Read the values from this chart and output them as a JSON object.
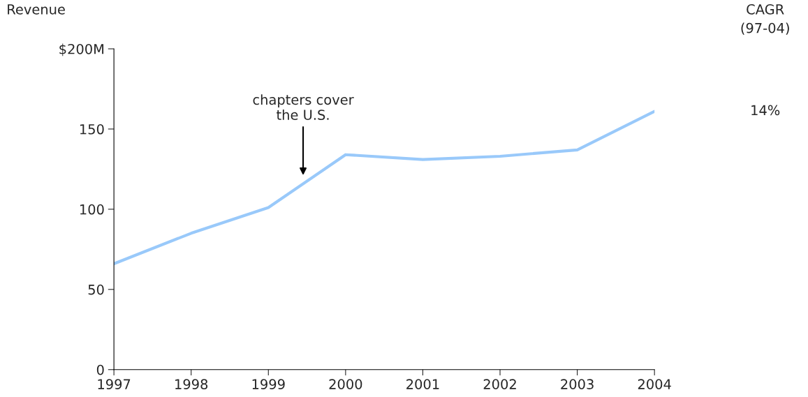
{
  "chart_data": {
    "type": "line",
    "ylabel": "Revenue",
    "x": [
      1997,
      1998,
      1999,
      2000,
      2001,
      2002,
      2003,
      2004
    ],
    "series": [
      {
        "color": "#99c9fa",
        "values": [
          66,
          85,
          101,
          134,
          131,
          133,
          137,
          161
        ]
      }
    ],
    "xlim": [
      1997,
      2004
    ],
    "xticks": [
      1997,
      1998,
      1999,
      2000,
      2001,
      2002,
      2003,
      2004
    ],
    "ylim": [
      0,
      200
    ],
    "yticks": [
      0,
      50,
      100,
      150,
      {
        "value": 200,
        "label": "$200M"
      }
    ],
    "grid": false,
    "legend": false,
    "annotations": [
      "CAGR",
      "(97-04)",
      "14%",
      "chapters cover\nthe U.S."
    ]
  }
}
